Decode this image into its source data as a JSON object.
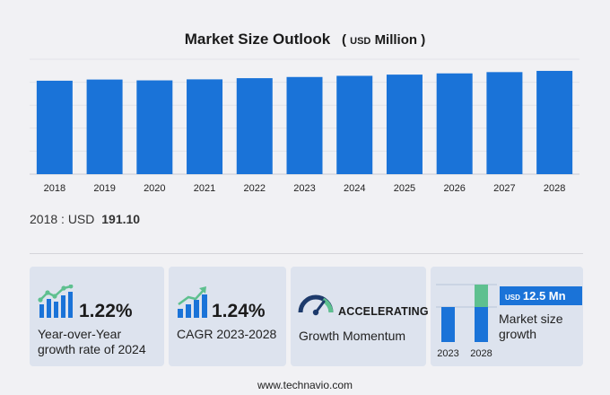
{
  "header": {
    "title": "Market Size Outlook",
    "unit_prefix": "USD",
    "unit": "Million"
  },
  "chart_data": {
    "type": "bar",
    "title": "Market Size Outlook (USD Million)",
    "categories": [
      "2018",
      "2019",
      "2020",
      "2021",
      "2022",
      "2023",
      "2024",
      "2025",
      "2026",
      "2027",
      "2028"
    ],
    "values": [
      191.1,
      193.5,
      191.8,
      193.9,
      196.3,
      198.7,
      201.1,
      203.6,
      206.1,
      208.7,
      211.2
    ],
    "xlabel": "",
    "ylabel": "",
    "ylim": [
      0,
      235
    ],
    "color": "#1a73d8",
    "grid": true,
    "legend": "none"
  },
  "base": {
    "label": "2018 : USD",
    "value": "191.10"
  },
  "cards": {
    "yoy": {
      "value": "1.22%",
      "line1": "Year-over-Year",
      "line2": "growth rate of 2024"
    },
    "cagr": {
      "value": "1.24%",
      "line1": "CAGR 2023-2028"
    },
    "momentum": {
      "status": "ACCELERATING",
      "line1": "Growth Momentum"
    },
    "growth": {
      "badge_prefix": "USD",
      "badge_value": "12.5 Mn",
      "line1": "Market size",
      "line2": "growth",
      "years": [
        "2023",
        "2028"
      ]
    }
  },
  "colors": {
    "accent": "#1a73d8",
    "green": "#5ec08f",
    "card_bg": "#dde3ee",
    "gauge_dark": "#1d3a6b"
  },
  "footer": {
    "site": "www.technavio.com"
  }
}
